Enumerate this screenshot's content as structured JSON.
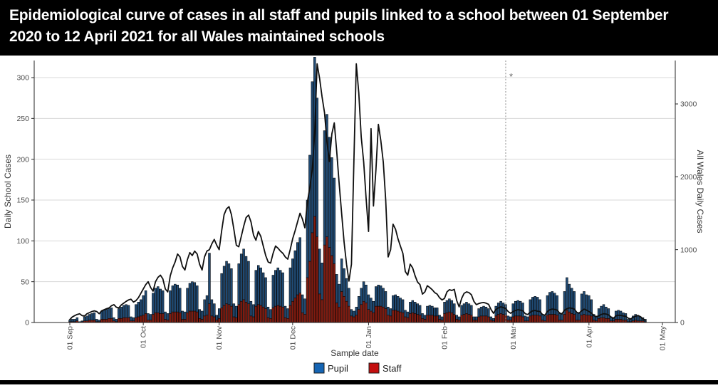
{
  "header": {
    "title": "Epidemiological curve of cases in all staff and pupils linked to a school between 01 September 2020 to 12 April 2021 for all Wales maintained schools"
  },
  "chart_data": {
    "type": "bar",
    "subtype": "stacked-bars-with-overlay-line",
    "start_date": "2020-09-01",
    "xlabel": "Sample date",
    "left_axis": {
      "label": "Daily School Cases",
      "ticks": [
        0,
        50,
        100,
        150,
        200,
        250,
        300
      ],
      "ylim": [
        0,
        330
      ]
    },
    "right_axis": {
      "label": "All Wales Daily Cases",
      "ticks": [
        0,
        1000,
        2000,
        3000
      ],
      "ylim": [
        0,
        3500
      ]
    },
    "x_ticks": [
      {
        "label": "01 Sep",
        "day": 0
      },
      {
        "label": "01 Oct",
        "day": 30
      },
      {
        "label": "01 Nov",
        "day": 61
      },
      {
        "label": "01 Dec",
        "day": 91
      },
      {
        "label": "01 Jan",
        "day": 122
      },
      {
        "label": "01 Feb",
        "day": 153
      },
      {
        "label": "01 Mar",
        "day": 181
      },
      {
        "label": "01 Apr",
        "day": 212
      },
      {
        "label": "01 May",
        "day": 242
      }
    ],
    "grid": "horizontal-only",
    "legend_position": "bottom",
    "legend": [
      {
        "label": "Pupil",
        "swatch_color": "#1565b4"
      },
      {
        "label": "Staff",
        "swatch_color": "#c40f0f"
      }
    ],
    "annotation": {
      "symbol": "*",
      "day": 178,
      "line_style": "dotted",
      "line_color": "#8c8c8c"
    },
    "colors": {
      "pupil_bar": "#204a73",
      "staff_bar": "#7f1b10",
      "bar_outline": "#000000",
      "line": "#0f0f0f"
    },
    "series": [
      {
        "name": "Staff",
        "type": "bar",
        "axis": "left",
        "values": [
          1,
          1,
          1,
          2,
          0,
          1,
          2,
          2,
          3,
          3,
          3,
          1,
          1,
          4,
          4,
          4,
          5,
          5,
          2,
          1,
          5,
          5,
          6,
          6,
          6,
          2,
          2,
          6,
          7,
          8,
          9,
          11,
          3,
          3,
          10,
          12,
          12,
          11,
          11,
          4,
          3,
          11,
          13,
          13,
          13,
          12,
          4,
          4,
          12,
          14,
          14,
          14,
          13,
          5,
          4,
          8,
          9,
          23,
          8,
          7,
          3,
          5,
          18,
          21,
          23,
          22,
          20,
          7,
          6,
          22,
          26,
          28,
          25,
          23,
          8,
          7,
          20,
          22,
          21,
          19,
          17,
          6,
          5,
          18,
          20,
          21,
          20,
          19,
          6,
          5,
          21,
          26,
          30,
          34,
          36,
          12,
          10,
          55,
          75,
          110,
          130,
          105,
          35,
          28,
          95,
          105,
          92,
          82,
          72,
          24,
          19,
          38,
          32,
          26,
          20,
          8,
          7,
          9,
          16,
          22,
          26,
          24,
          16,
          14,
          12,
          20,
          20,
          20,
          19,
          17,
          9,
          8,
          15,
          15,
          14,
          13,
          12,
          7,
          6,
          11,
          12,
          11,
          10,
          9,
          5,
          4,
          9,
          9,
          9,
          8,
          8,
          4,
          3,
          11,
          12,
          13,
          12,
          10,
          4,
          3,
          9,
          10,
          11,
          10,
          9,
          3,
          3,
          7,
          8,
          8,
          8,
          7,
          3,
          2,
          8,
          10,
          11,
          10,
          9,
          3,
          3,
          7,
          8,
          8,
          8,
          7,
          2,
          2,
          8,
          9,
          9,
          9,
          8,
          3,
          2,
          9,
          10,
          10,
          10,
          9,
          3,
          3,
          10,
          15,
          13,
          11,
          10,
          3,
          3,
          9,
          10,
          9,
          9,
          8,
          3,
          2,
          5,
          6,
          6,
          5,
          5,
          2,
          2,
          4,
          4,
          4,
          3,
          3,
          1,
          1,
          2,
          3,
          2,
          2,
          2,
          1
        ]
      },
      {
        "name": "Pupil",
        "type": "bar",
        "axis": "left",
        "values": [
          2,
          3,
          3,
          4,
          1,
          1,
          5,
          6,
          7,
          8,
          9,
          3,
          2,
          10,
          11,
          12,
          12,
          13,
          4,
          3,
          12,
          14,
          15,
          16,
          15,
          5,
          4,
          16,
          18,
          20,
          24,
          28,
          8,
          7,
          26,
          30,
          32,
          30,
          28,
          9,
          8,
          28,
          32,
          34,
          33,
          30,
          10,
          9,
          30,
          34,
          36,
          35,
          32,
          11,
          10,
          20,
          24,
          62,
          20,
          16,
          6,
          12,
          42,
          48,
          52,
          50,
          46,
          16,
          14,
          50,
          58,
          62,
          56,
          52,
          18,
          15,
          44,
          48,
          46,
          42,
          38,
          13,
          11,
          40,
          44,
          46,
          44,
          42,
          14,
          12,
          46,
          52,
          58,
          64,
          68,
          22,
          19,
          95,
          130,
          185,
          195,
          170,
          55,
          45,
          140,
          150,
          135,
          120,
          105,
          35,
          28,
          40,
          34,
          28,
          22,
          8,
          7,
          10,
          16,
          20,
          24,
          22,
          18,
          16,
          14,
          24,
          26,
          25,
          23,
          21,
          10,
          9,
          18,
          19,
          18,
          17,
          16,
          8,
          7,
          14,
          15,
          14,
          13,
          12,
          6,
          5,
          11,
          12,
          11,
          10,
          10,
          5,
          4,
          14,
          15,
          16,
          15,
          13,
          5,
          4,
          12,
          13,
          14,
          13,
          12,
          4,
          4,
          10,
          11,
          12,
          11,
          10,
          4,
          3,
          12,
          14,
          15,
          14,
          13,
          5,
          4,
          16,
          18,
          19,
          18,
          17,
          6,
          5,
          20,
          22,
          23,
          22,
          20,
          7,
          6,
          24,
          27,
          28,
          26,
          24,
          8,
          7,
          28,
          40,
          34,
          31,
          28,
          9,
          8,
          26,
          28,
          25,
          24,
          20,
          7,
          6,
          12,
          14,
          16,
          14,
          12,
          5,
          4,
          10,
          11,
          10,
          9,
          8,
          3,
          3,
          6,
          7,
          6,
          5,
          4,
          3
        ]
      },
      {
        "name": "All Wales Daily Cases",
        "type": "line",
        "axis": "right",
        "values": [
          40,
          75,
          95,
          110,
          120,
          95,
          90,
          120,
          135,
          150,
          160,
          150,
          120,
          160,
          175,
          190,
          200,
          230,
          245,
          210,
          200,
          240,
          265,
          290,
          310,
          320,
          280,
          300,
          340,
          400,
          460,
          520,
          560,
          480,
          430,
          560,
          620,
          650,
          600,
          460,
          420,
          640,
          750,
          830,
          940,
          900,
          770,
          720,
          860,
          960,
          920,
          980,
          940,
          800,
          720,
          900,
          980,
          1000,
          1080,
          1140,
          1060,
          1000,
          1260,
          1480,
          1560,
          1590,
          1480,
          1280,
          1060,
          1040,
          1180,
          1320,
          1440,
          1475,
          1380,
          1200,
          1130,
          1250,
          1180,
          1050,
          920,
          830,
          815,
          950,
          1050,
          1020,
          980,
          950,
          900,
          870,
          1000,
          1150,
          1260,
          1380,
          1500,
          1420,
          1300,
          1650,
          1850,
          2100,
          2600,
          3550,
          3350,
          3100,
          2880,
          2480,
          2210,
          2590,
          2740,
          2350,
          1900,
          1500,
          1100,
          800,
          570,
          800,
          2200,
          3550,
          3150,
          2550,
          2200,
          1700,
          1250,
          2660,
          1600,
          2100,
          2720,
          2500,
          2200,
          1680,
          900,
          1000,
          1350,
          1280,
          1150,
          1050,
          950,
          700,
          650,
          800,
          750,
          640,
          555,
          520,
          390,
          420,
          505,
          480,
          450,
          410,
          390,
          340,
          310,
          330,
          420,
          450,
          440,
          455,
          300,
          215,
          330,
          400,
          420,
          410,
          380,
          290,
          245,
          260,
          270,
          275,
          265,
          250,
          180,
          127,
          180,
          200,
          215,
          205,
          190,
          150,
          127,
          150,
          165,
          176,
          170,
          160,
          120,
          110,
          140,
          160,
          165,
          155,
          150,
          110,
          100,
          150,
          175,
          185,
          180,
          170,
          130,
          120,
          170,
          190,
          200,
          195,
          185,
          140,
          130,
          160,
          184,
          170,
          150,
          130,
          95,
          80,
          90,
          110,
          120,
          116,
          105,
          75,
          60,
          90,
          100,
          97,
          90,
          85,
          60,
          49,
          70,
          85,
          97,
          80,
          50,
          30
        ]
      }
    ]
  }
}
